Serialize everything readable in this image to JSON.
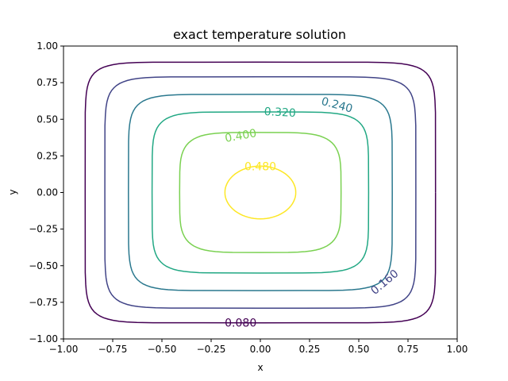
{
  "chart_data": {
    "type": "contour",
    "title": "exact temperature solution",
    "xlabel": "x",
    "ylabel": "y",
    "xlim": [
      -1.0,
      1.0
    ],
    "ylim": [
      -1.0,
      1.0
    ],
    "xticks": [
      "−1.00",
      "−0.75",
      "−0.50",
      "−0.25",
      "0.00",
      "0.25",
      "0.50",
      "0.75",
      "1.00"
    ],
    "yticks": [
      "−1.00",
      "−0.75",
      "−0.50",
      "−0.25",
      "0.00",
      "0.25",
      "0.50",
      "0.75",
      "1.00"
    ],
    "grid": false,
    "levels": [
      {
        "value": 0.08,
        "label": "0.080",
        "color": "#440154",
        "half_width": 0.89,
        "label_at": [
          -0.1,
          -0.89
        ]
      },
      {
        "value": 0.16,
        "label": "0.160",
        "color": "#414487",
        "half_width": 0.79,
        "label_at": [
          0.63,
          -0.61
        ]
      },
      {
        "value": 0.24,
        "label": "0.240",
        "color": "#2a788e",
        "half_width": 0.67,
        "label_at": [
          0.39,
          0.6
        ]
      },
      {
        "value": 0.32,
        "label": "0.320",
        "color": "#22a884",
        "half_width": 0.55,
        "label_at": [
          0.1,
          0.55
        ]
      },
      {
        "value": 0.4,
        "label": "0.400",
        "color": "#7ad151",
        "half_width": 0.41,
        "label_at": [
          -0.1,
          0.39
        ]
      },
      {
        "value": 0.48,
        "label": "0.480",
        "color": "#fde725",
        "half_width": 0.18,
        "label_at": [
          0.0,
          0.18
        ]
      }
    ]
  }
}
